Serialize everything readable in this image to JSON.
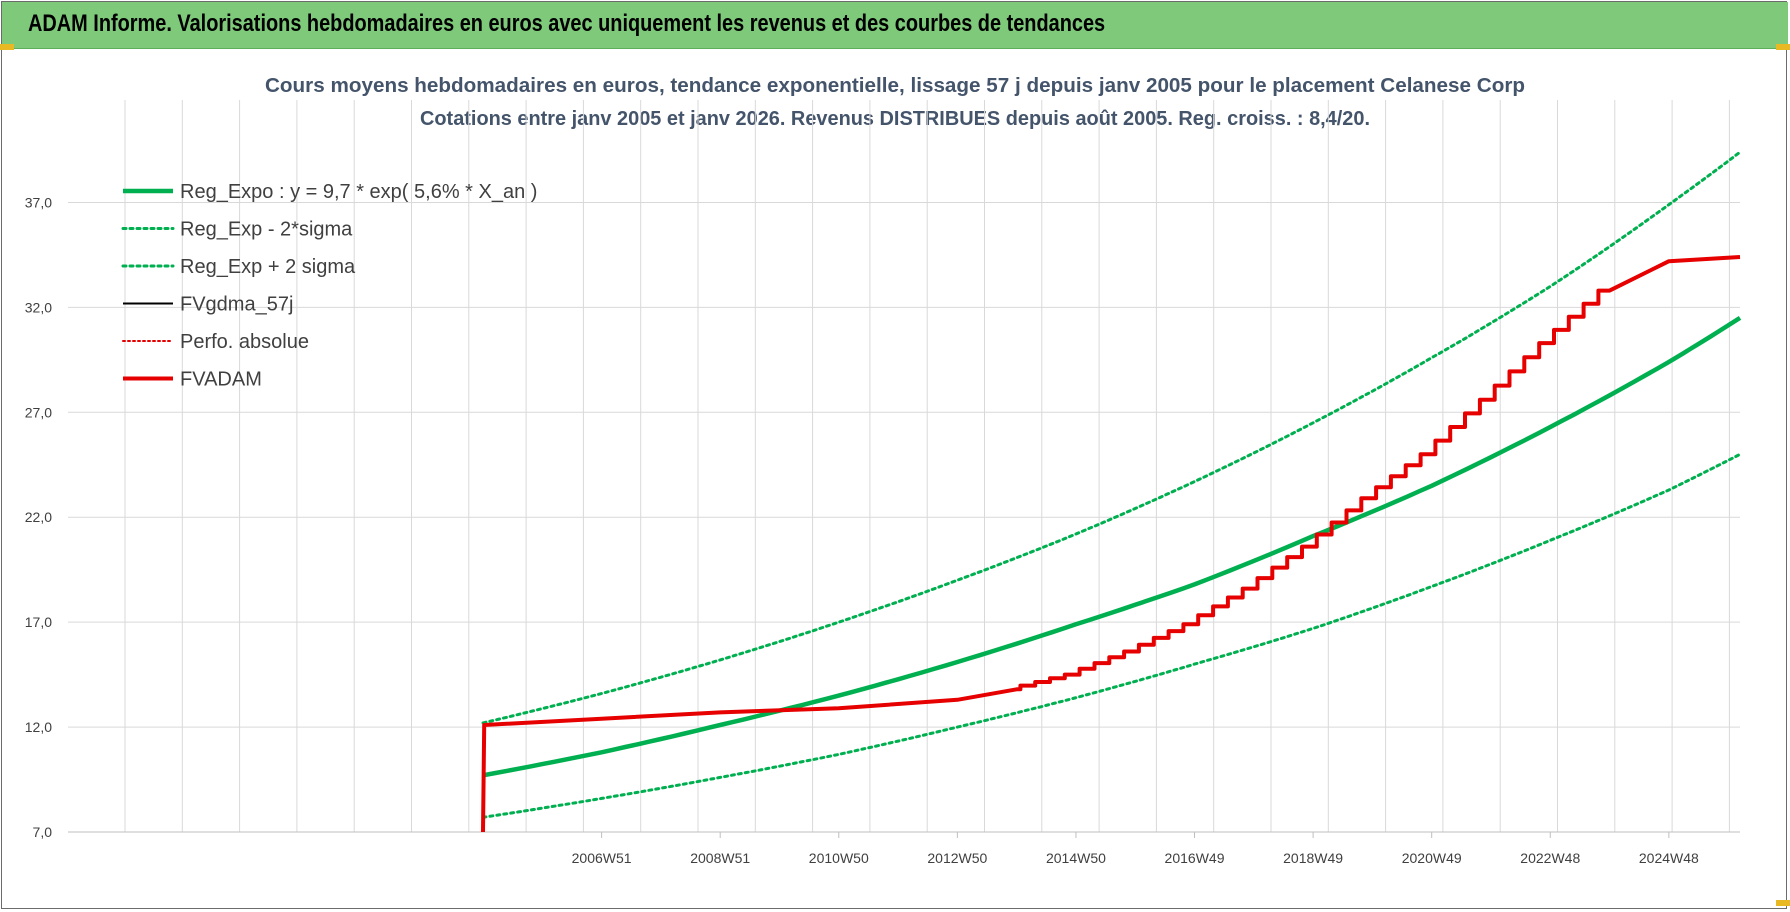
{
  "header": {
    "title": "ADAM Informe. Valorisations hebdomadaires en euros avec uniquement les revenus et des courbes de tendances"
  },
  "colors": {
    "banner": "#7ec97a",
    "reg_expo": "#00b050",
    "fvadam": "#e60000",
    "fvgdma": "#000000",
    "perfo": "#e60000",
    "grid": "#d9d9d9",
    "title_text": "#44546a"
  },
  "chart_data": {
    "type": "line",
    "title": "Cours moyens hebdomadaires en euros, tendance exponentielle, lissage 57 j depuis janv 2005 pour le placement Celanese Corp",
    "subtitle": "Cotations entre janv 2005 et janv 2026. Revenus DISTRIBUES depuis août 2005. Reg. croiss. : 8,4/20.",
    "xlabel": "",
    "ylabel": "",
    "x_range": [
      1998.0,
      2026.2
    ],
    "ylim": [
      7.0,
      39.5
    ],
    "y_ticks": [
      "7,0",
      "12,0",
      "17,0",
      "22,0",
      "27,0",
      "32,0",
      "37,0"
    ],
    "x_ticks": [
      "2006W51",
      "2008W51",
      "2010W50",
      "2012W50",
      "2014W50",
      "2016W49",
      "2018W49",
      "2020W49",
      "2022W48",
      "2024W48"
    ],
    "grid": true,
    "legend_position": "top-left",
    "legend": [
      "Reg_Expo : y = 9,7 * exp( 5,6% *  X_an )",
      "Reg_Exp - 2*sigma",
      "Reg_Exp + 2 sigma",
      "FVgdma_57j",
      "Perfo. absolue",
      "FVADAM"
    ],
    "series": [
      {
        "name": "Reg_Expo : y = 9,7 * exp( 5,6% *  X_an )",
        "style": "solid-green",
        "x": [
          2005.0,
          2007.0,
          2009.0,
          2011.0,
          2013.0,
          2015.0,
          2017.0,
          2019.0,
          2021.0,
          2023.0,
          2025.0,
          2026.2
        ],
        "y": [
          9.7,
          10.8,
          12.1,
          13.5,
          15.1,
          16.9,
          18.8,
          21.1,
          23.5,
          26.3,
          29.4,
          31.5
        ]
      },
      {
        "name": "Reg_Exp - 2*sigma",
        "style": "dotted-green",
        "x": [
          2005.0,
          2007.0,
          2009.0,
          2011.0,
          2013.0,
          2015.0,
          2017.0,
          2019.0,
          2021.0,
          2023.0,
          2025.0,
          2026.2
        ],
        "y": [
          7.7,
          8.6,
          9.6,
          10.7,
          12.0,
          13.4,
          15.0,
          16.7,
          18.7,
          20.9,
          23.3,
          25.0
        ]
      },
      {
        "name": "Reg_Exp + 2 sigma",
        "style": "dotted-green",
        "x": [
          2005.0,
          2007.0,
          2009.0,
          2011.0,
          2013.0,
          2015.0,
          2017.0,
          2019.0,
          2021.0,
          2023.0,
          2025.0,
          2026.2
        ],
        "y": [
          12.2,
          13.6,
          15.2,
          17.0,
          19.0,
          21.2,
          23.7,
          26.5,
          29.6,
          33.0,
          36.9,
          39.4
        ]
      },
      {
        "name": "FVgdma_57j",
        "style": "solid-black",
        "x": [
          2005.0,
          2005.02,
          2007.0,
          2009.0,
          2011.0,
          2013.0,
          2014.0,
          2015.0,
          2016.0,
          2017.0,
          2018.0,
          2019.0,
          2020.0,
          2021.0,
          2022.0,
          2023.0,
          2024.0,
          2025.0,
          2026.2
        ],
        "y": [
          7.0,
          12.1,
          12.4,
          12.7,
          12.9,
          13.3,
          13.8,
          14.5,
          15.6,
          16.9,
          18.6,
          20.6,
          22.9,
          25.0,
          27.6,
          30.3,
          32.8,
          34.2,
          34.4
        ]
      },
      {
        "name": "FVADAM",
        "style": "solid-red",
        "x": [
          2005.0,
          2005.02,
          2007.0,
          2009.0,
          2011.0,
          2013.0,
          2014.0,
          2015.0,
          2016.0,
          2017.0,
          2018.0,
          2019.0,
          2020.0,
          2021.0,
          2022.0,
          2023.0,
          2024.0,
          2025.0,
          2026.2
        ],
        "y": [
          7.0,
          12.1,
          12.4,
          12.7,
          12.9,
          13.3,
          13.8,
          14.5,
          15.6,
          16.9,
          18.6,
          20.6,
          22.9,
          25.0,
          27.6,
          30.3,
          32.8,
          34.2,
          34.4
        ]
      }
    ]
  }
}
